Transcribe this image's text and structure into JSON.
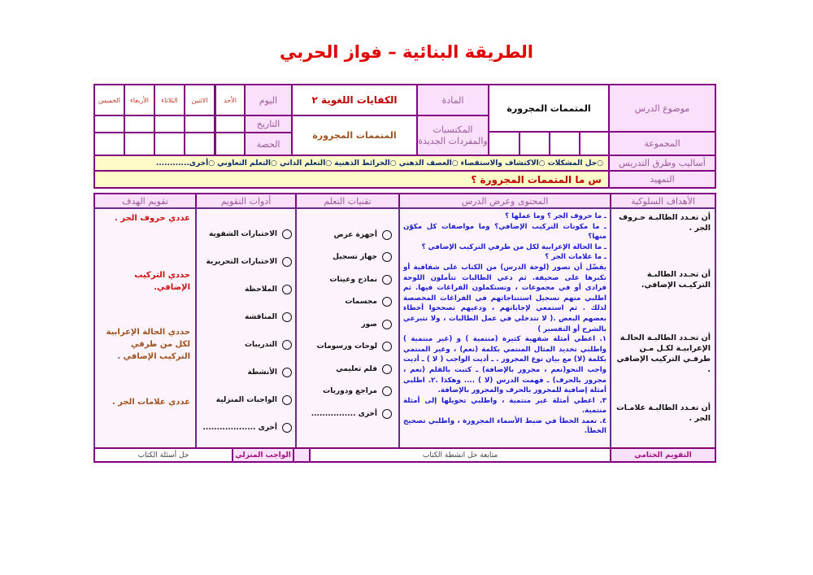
{
  "title": "الطريقة البنائية  –  فواز الحربي",
  "header": {
    "topic_label": "موضوع الدرس",
    "topic_value": "المتممات المجرورة",
    "subject_label": "المادة",
    "subject_value": "الكفايات اللغوية ٢",
    "day_label": "اليوم",
    "days": [
      "الأحد",
      "الاثنين",
      "الثلاثاء",
      "الأربعاء",
      "الخميس"
    ],
    "date_label": "التاريخ",
    "period_label": "الحصة",
    "vocab_label": "المكتسبات والمفردات الجديدة",
    "vocab_value": "المتممات المجرورة",
    "group_label": "المجموعة",
    "methods_label": "أساليب وطرق التدريس",
    "methods_value": "○حل المشكلات  ○الاكتشاف والاستقصاء  ○العصف الذهني  ○الخرائط الذهنية  ○التعلم الذاتي  ○التعلم التعاوني  ○أخرى............",
    "intro_label": "التمهيد",
    "intro_value": "س   ما المتممات المجرورة ؟"
  },
  "columns": {
    "objectives": "الأهداف السلوكية",
    "content": "المحتوى وعرض الدرس",
    "techniques": "تقنيات التعلم",
    "tools": "أدوات التقويم",
    "evaluation": "تقويم الهدف"
  },
  "objectives": [
    "أن تعـدد الطالبـة حـروف الجر .",
    "أن تحـدد الطالبـة التركيـب الإضافي.",
    "أن تحـدد الطالبـة الحالـة الإعرابيـة لكـل مـن طرفـي التركيب الإضافي .",
    "أن تعـدد الطالبـة علامـات الجر ."
  ],
  "content": "ـ ما حروف الجر ؟  وما عملها ؟\nـ ما مكونات التركيب الإضافي؟ وما مواصفات كل مكوّن منها؟\nـ ما الحالة الإعرابية لكل من طرفي التركيب الإضافي ؟\nـ ما علامات الجر ؟\nيفضّل أن تصور (لوحة الدرس) من الكتاب على شفافية أو تكبرها على صحيفة.  ثم دعي الطالبات تتأملون اللوحة فرادى أو في مجموعات ، وتستكملون الفراغات فيها.  ثم اطلبي منهم تسجيل استنتاجاتهم في الفراغات المخصصة لذلك . ثم استمعي لإجاباتهم ، ودعيهم تصححوا أخطاء بعضهم البعض .( لا تتدخلي في عمل الطالبات ، ولا تتبرعي بالشرح أو التفسير )\n١. اعطي أمثلة شفهية كثيرة (منتمية ) و (غير منتمية ) واطلبي تحديد المثال المنتمي بكلمة (نعم) ، وغير المنتمي بكلمة (لا) مع بيان نوع المجرور .  ـ أديت الواجب ( لا )  ـ أديت واجب النحو(نعم ، مجرور بالإضافة) ـ كتبت بالقلم (نعم ، مجرور بالحرف) ـ فهمت الدرس (لا ) .... وهكذا .٢. اطلبي أمثلة إضافية للمجرور بالحرف والمجرور بالإضافة.\n٣. اعطي أمثلة غير منتمية ، واطلبي تحويلها إلى أمثلة منتمية.\n٤. تعمد الخطأ في ضبط الأسماء المجرورة ، واطلبي تصحيح الخطأ.",
  "techniques": [
    "أجهزة عرض",
    "جهاز تسجيل",
    "نماذج وعينات",
    "مجسمات",
    "صور",
    "لوحات ورسومات",
    "فلم تعليمي",
    "مراجع ودوريات",
    "أخرى ................"
  ],
  "tools": [
    "الاختبارات الشفوية",
    "الاختبارات التحريرية",
    "الملاحظة",
    "المناقشة",
    "التدريبات",
    "الأنشطة",
    "الواجبات المنزلية",
    "أخرى ..................."
  ],
  "evaluation": [
    "عددي حروف الجر .",
    "حددي التركيب الإضافي.",
    "حددي الحالة الإعرابية لكل من طرفي التركيب الإضافي .",
    "عددي علامات الجر ."
  ],
  "footer": {
    "final_label": "التقويم الختامي",
    "final_value": "متابعة حل انشطة الكتاب",
    "homework_label": "الواجب المنزلي",
    "homework_value": "حل أسئلة الكتاب"
  }
}
